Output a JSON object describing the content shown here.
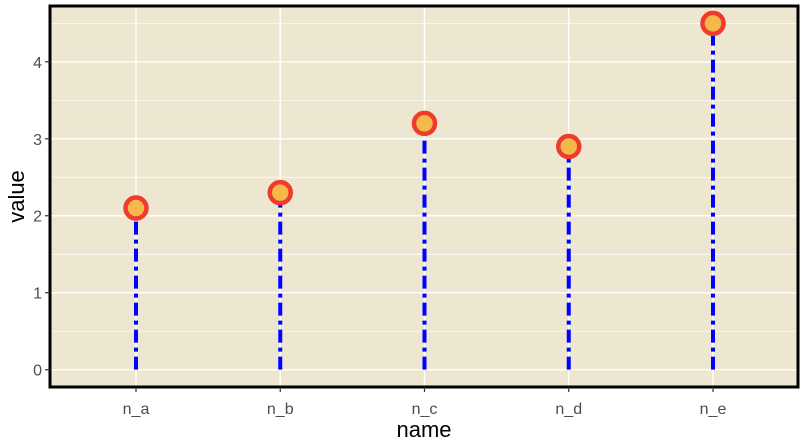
{
  "chart_data": {
    "type": "lollipop",
    "title": "",
    "xlabel": "name",
    "ylabel": "value",
    "categories": [
      "n_a",
      "n_b",
      "n_c",
      "n_d",
      "n_e"
    ],
    "values": [
      2.1,
      2.3,
      3.2,
      2.9,
      4.5
    ],
    "y_ticks": [
      0,
      1,
      2,
      3,
      4
    ],
    "ylim": [
      -0.225,
      4.725
    ],
    "grid": true,
    "legend": "none",
    "colors": {
      "panel_background": "#ede6d0",
      "panel_border": "#000000",
      "grid": "#ffffff",
      "stem": "#0000ff",
      "point_fill": "#f5b84a",
      "point_outline": "#ee3b2d"
    }
  }
}
